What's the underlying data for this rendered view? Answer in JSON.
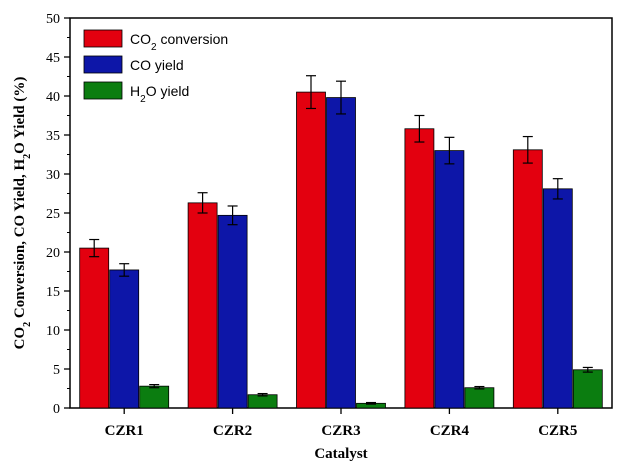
{
  "chart_data": {
    "type": "bar",
    "xlabel": "Catalyst",
    "ylabel_parts": [
      "CO",
      "2",
      " Conversion, CO Yield, H",
      "2",
      "O Yield (%)"
    ],
    "categories": [
      "CZR1",
      "CZR2",
      "CZR3",
      "CZR4",
      "CZR5"
    ],
    "ylim": [
      0,
      50
    ],
    "yticks": [
      0,
      5,
      10,
      15,
      20,
      25,
      30,
      35,
      40,
      45,
      50
    ],
    "legend_position": "top-left",
    "series": [
      {
        "name_parts": [
          "CO",
          "2",
          " conversion"
        ],
        "color": "#e3000f",
        "values": [
          20.5,
          26.3,
          40.5,
          35.8,
          33.1
        ],
        "errors": [
          1.1,
          1.3,
          2.1,
          1.7,
          1.7
        ]
      },
      {
        "name_parts": [
          "CO yield"
        ],
        "color": "#0d16a8",
        "values": [
          17.7,
          24.7,
          39.8,
          33.0,
          28.1
        ],
        "errors": [
          0.8,
          1.2,
          2.1,
          1.7,
          1.3
        ]
      },
      {
        "name_parts": [
          "H",
          "2",
          "O yield"
        ],
        "color": "#0b7d10",
        "values": [
          2.8,
          1.7,
          0.6,
          2.6,
          4.9
        ],
        "errors": [
          0.2,
          0.15,
          0.1,
          0.15,
          0.3
        ]
      }
    ]
  }
}
